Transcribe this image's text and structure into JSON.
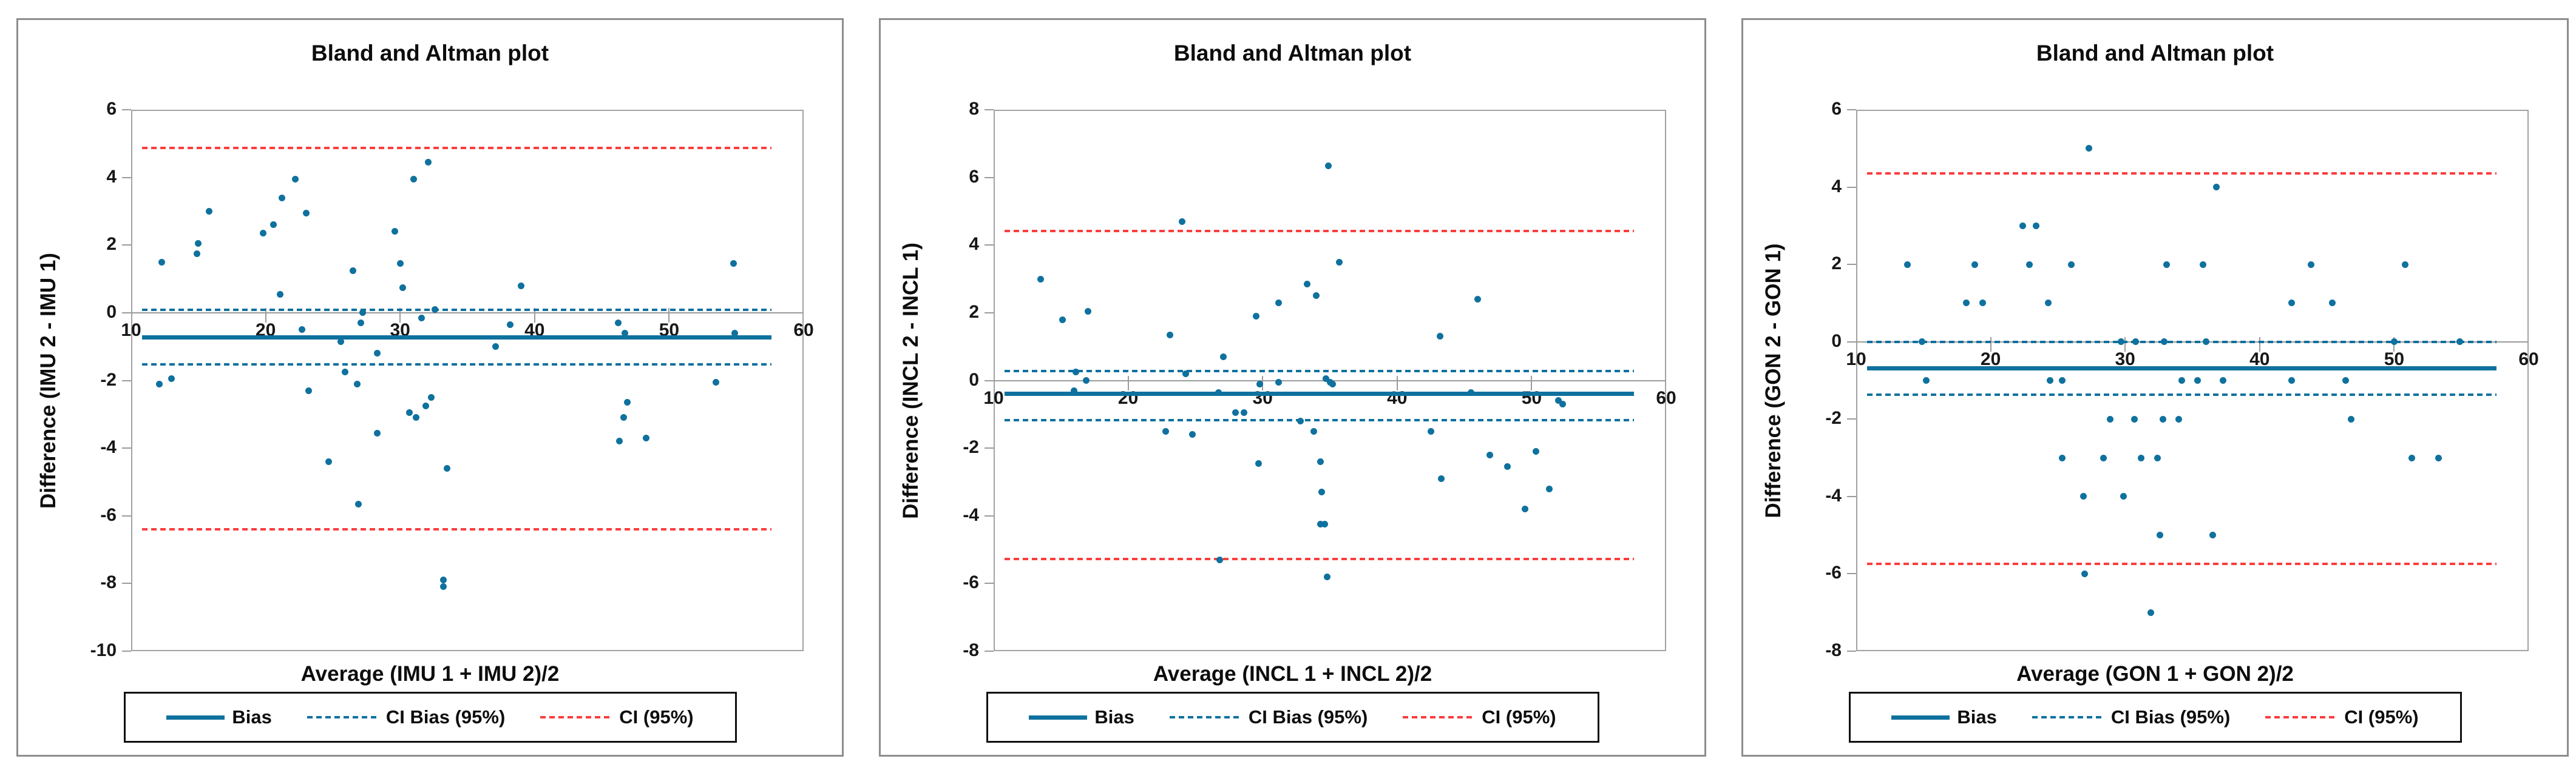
{
  "page": {
    "background": "#ffffff"
  },
  "colors": {
    "teal": "#0f719e",
    "red": "#fb3d3d",
    "axis_gray": "#9b9b9b",
    "panel_border": "#8d8d8d",
    "text": "#0d0d0d"
  },
  "legend": {
    "items": [
      {
        "label": "Bias",
        "style": "solid",
        "color_key": "teal"
      },
      {
        "label": "CI Bias (95%)",
        "style": "dashed",
        "color_key": "teal"
      },
      {
        "label": "CI (95%)",
        "style": "dashed",
        "color_key": "red"
      }
    ]
  },
  "chart_data": [
    {
      "type": "scatter",
      "title": "Bland and Altman plot",
      "xlabel": "Average (IMU 1 + IMU 2)/2",
      "ylabel": "Difference (IMU 2 - IMU 1)",
      "xlim": [
        10,
        60
      ],
      "ylim": [
        -10,
        6
      ],
      "xticks": [
        10,
        20,
        30,
        40,
        50,
        60
      ],
      "yticks": [
        6,
        4,
        2,
        0,
        -2,
        -4,
        -6,
        -8,
        -10
      ],
      "grid": false,
      "legend_position": "bottom",
      "bias": -0.72,
      "ci_bias_upper": 0.08,
      "ci_bias_lower": -1.52,
      "ci_upper": 4.87,
      "ci_lower": -6.4,
      "line_x_span": [
        10.8,
        57.6
      ],
      "points": [
        [
          12.3,
          1.5
        ],
        [
          12.1,
          -2.1
        ],
        [
          13.0,
          -1.95
        ],
        [
          14.9,
          1.75
        ],
        [
          15.0,
          2.05
        ],
        [
          15.8,
          3.0
        ],
        [
          19.8,
          2.35
        ],
        [
          20.6,
          2.6
        ],
        [
          21.1,
          0.55
        ],
        [
          21.2,
          3.4
        ],
        [
          22.2,
          3.95
        ],
        [
          22.7,
          -0.5
        ],
        [
          23.0,
          2.95
        ],
        [
          23.2,
          -2.3
        ],
        [
          24.7,
          -4.4
        ],
        [
          25.6,
          -0.85
        ],
        [
          25.9,
          -1.75
        ],
        [
          26.5,
          1.25
        ],
        [
          26.8,
          -2.1
        ],
        [
          26.9,
          -5.65
        ],
        [
          27.1,
          -0.3
        ],
        [
          27.2,
          0.0
        ],
        [
          28.3,
          -1.2
        ],
        [
          28.3,
          -3.55
        ],
        [
          29.6,
          2.4
        ],
        [
          30.0,
          1.45
        ],
        [
          30.2,
          0.75
        ],
        [
          30.7,
          -2.95
        ],
        [
          31.0,
          3.95
        ],
        [
          31.2,
          -3.1
        ],
        [
          31.6,
          -0.15
        ],
        [
          31.9,
          -2.75
        ],
        [
          32.1,
          4.45
        ],
        [
          32.3,
          -2.5
        ],
        [
          32.6,
          0.1
        ],
        [
          33.2,
          -7.9
        ],
        [
          33.2,
          -8.1
        ],
        [
          33.5,
          -4.6
        ],
        [
          37.1,
          -1.0
        ],
        [
          38.2,
          -0.35
        ],
        [
          39.0,
          0.8
        ],
        [
          46.2,
          -0.3
        ],
        [
          46.3,
          -3.8
        ],
        [
          46.6,
          -3.1
        ],
        [
          46.7,
          -0.6
        ],
        [
          46.9,
          -2.65
        ],
        [
          48.3,
          -3.7
        ],
        [
          53.5,
          -2.05
        ],
        [
          54.8,
          1.45
        ],
        [
          54.9,
          -0.6
        ]
      ]
    },
    {
      "type": "scatter",
      "title": "Bland and Altman plot",
      "xlabel": "Average (INCL 1 + INCL 2)/2",
      "ylabel": "Difference (INCL 2 - INCL 1)",
      "xlim": [
        10,
        60
      ],
      "ylim": [
        -8,
        8
      ],
      "xticks": [
        10,
        20,
        30,
        40,
        50,
        60
      ],
      "yticks": [
        8,
        6,
        4,
        2,
        0,
        -2,
        -4,
        -6,
        -8
      ],
      "grid": false,
      "legend_position": "bottom",
      "bias": -0.4,
      "ci_bias_upper": 0.27,
      "ci_bias_lower": -1.17,
      "ci_upper": 4.42,
      "ci_lower": -5.28,
      "line_x_span": [
        10.8,
        57.6
      ],
      "points": [
        [
          13.5,
          3.0
        ],
        [
          15.1,
          1.8
        ],
        [
          16.0,
          -0.3
        ],
        [
          16.1,
          0.25
        ],
        [
          16.9,
          0.0
        ],
        [
          17.0,
          2.05
        ],
        [
          22.8,
          -1.5
        ],
        [
          23.1,
          1.35
        ],
        [
          24.0,
          4.7
        ],
        [
          24.3,
          0.2
        ],
        [
          24.8,
          -1.6
        ],
        [
          26.7,
          -0.35
        ],
        [
          26.8,
          -5.3
        ],
        [
          27.1,
          0.7
        ],
        [
          28.0,
          -0.95
        ],
        [
          28.6,
          -0.95
        ],
        [
          29.5,
          1.9
        ],
        [
          29.7,
          -2.45
        ],
        [
          29.8,
          -0.1
        ],
        [
          31.2,
          -0.05
        ],
        [
          31.2,
          2.3
        ],
        [
          32.8,
          -1.2
        ],
        [
          33.3,
          2.85
        ],
        [
          33.8,
          -1.5
        ],
        [
          34.0,
          2.5
        ],
        [
          34.3,
          -2.4
        ],
        [
          34.4,
          -3.3
        ],
        [
          34.3,
          -4.25
        ],
        [
          34.6,
          -4.25
        ],
        [
          34.7,
          0.05
        ],
        [
          34.9,
          6.35
        ],
        [
          35.0,
          -0.05
        ],
        [
          35.2,
          -0.1
        ],
        [
          34.8,
          -5.8
        ],
        [
          35.7,
          3.5
        ],
        [
          42.5,
          -1.5
        ],
        [
          43.2,
          1.3
        ],
        [
          43.3,
          -2.9
        ],
        [
          45.5,
          -0.35
        ],
        [
          46.0,
          2.4
        ],
        [
          46.9,
          -2.2
        ],
        [
          48.2,
          -2.55
        ],
        [
          49.5,
          -3.8
        ],
        [
          50.3,
          -2.1
        ],
        [
          51.3,
          -3.2
        ],
        [
          52.0,
          -0.6
        ],
        [
          52.3,
          -0.7
        ]
      ]
    },
    {
      "type": "scatter",
      "title": "Bland and Altman plot",
      "xlabel": "Average (GON 1 + GON 2)/2",
      "ylabel": "Difference (GON 2 - GON 1)",
      "xlim": [
        10,
        60
      ],
      "ylim": [
        -8,
        6
      ],
      "xticks": [
        10,
        20,
        30,
        40,
        50,
        60
      ],
      "yticks": [
        6,
        4,
        2,
        0,
        -2,
        -4,
        -6,
        -8
      ],
      "grid": false,
      "legend_position": "bottom",
      "bias": -0.68,
      "ci_bias_upper": 0.0,
      "ci_bias_lower": -1.37,
      "ci_upper": 4.35,
      "ci_lower": -5.75,
      "line_x_span": [
        10.8,
        57.6
      ],
      "points": [
        [
          13.8,
          2
        ],
        [
          14.9,
          0
        ],
        [
          15.2,
          -1
        ],
        [
          18.2,
          1
        ],
        [
          18.8,
          2
        ],
        [
          19.4,
          1
        ],
        [
          22.4,
          3
        ],
        [
          22.9,
          2
        ],
        [
          23.4,
          3
        ],
        [
          24.3,
          1
        ],
        [
          24.4,
          -1
        ],
        [
          25.3,
          -1
        ],
        [
          25.3,
          -3
        ],
        [
          26.0,
          2
        ],
        [
          26.9,
          -4
        ],
        [
          27.0,
          -6
        ],
        [
          27.3,
          5
        ],
        [
          28.4,
          -3
        ],
        [
          28.9,
          -2
        ],
        [
          29.7,
          0
        ],
        [
          29.9,
          -4
        ],
        [
          30.7,
          -2
        ],
        [
          30.8,
          0
        ],
        [
          31.2,
          -3
        ],
        [
          31.9,
          -7
        ],
        [
          32.4,
          -3
        ],
        [
          32.6,
          -5
        ],
        [
          32.8,
          -2
        ],
        [
          32.9,
          0
        ],
        [
          33.1,
          2
        ],
        [
          34.0,
          -2
        ],
        [
          34.2,
          -1
        ],
        [
          35.4,
          -1
        ],
        [
          35.8,
          2
        ],
        [
          36.0,
          0
        ],
        [
          36.8,
          4
        ],
        [
          36.5,
          -5
        ],
        [
          37.3,
          -1
        ],
        [
          42.4,
          -1
        ],
        [
          42.4,
          1
        ],
        [
          43.8,
          2
        ],
        [
          45.4,
          1
        ],
        [
          46.4,
          -1
        ],
        [
          46.8,
          -2
        ],
        [
          50.0,
          0
        ],
        [
          50.8,
          2
        ],
        [
          51.3,
          -3
        ],
        [
          53.3,
          -3
        ],
        [
          54.9,
          0
        ]
      ]
    }
  ]
}
